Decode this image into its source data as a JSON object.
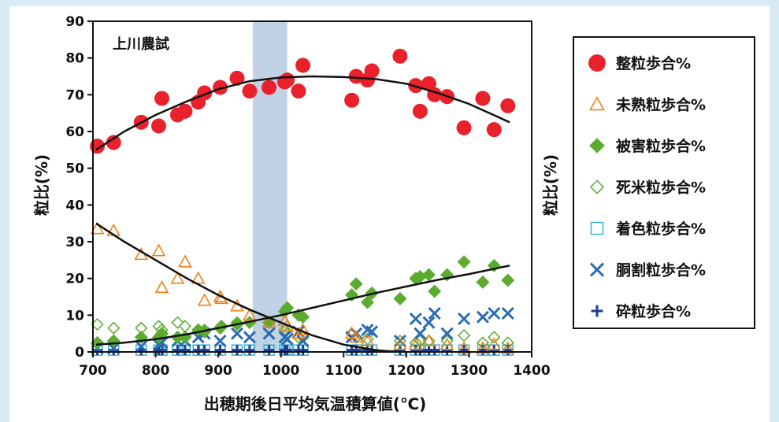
{
  "chart_data": {
    "type": "scatter",
    "annotation": "上川農試",
    "xlabel": "出穂期後日平均気温積算値(℃)",
    "ylabel": "粒比(%)",
    "xlim": [
      700,
      1400
    ],
    "ylim": [
      0,
      90
    ],
    "xticks": [
      "700",
      "800",
      "900",
      "1000",
      "1100",
      "1200",
      "1300",
      "1400"
    ],
    "yticks": [
      "0",
      "10",
      "20",
      "30",
      "40",
      "50",
      "60",
      "70",
      "80",
      "90"
    ],
    "highlight_band": [
      955,
      1010
    ],
    "legend_position": "right",
    "grid": false,
    "series": [
      {
        "name": "整粒歩合%",
        "marker": "filled-circle",
        "color": "#e8212b",
        "points": [
          [
            707,
            56
          ],
          [
            733,
            57
          ],
          [
            777,
            62.5
          ],
          [
            805,
            61.5
          ],
          [
            810,
            69
          ],
          [
            835,
            64.5
          ],
          [
            847,
            65.5
          ],
          [
            868,
            68
          ],
          [
            878,
            70.5
          ],
          [
            903,
            72
          ],
          [
            930,
            74.5
          ],
          [
            950,
            71
          ],
          [
            981,
            72
          ],
          [
            1006,
            73.5
          ],
          [
            1010,
            74
          ],
          [
            1028,
            71
          ],
          [
            1035,
            78
          ],
          [
            1113,
            68.5
          ],
          [
            1120,
            75
          ],
          [
            1138,
            74
          ],
          [
            1145,
            76.5
          ],
          [
            1190,
            80.5
          ],
          [
            1215,
            72.5
          ],
          [
            1222,
            65.5
          ],
          [
            1236,
            73
          ],
          [
            1245,
            70
          ],
          [
            1265,
            69.5
          ],
          [
            1292,
            61
          ],
          [
            1322,
            69
          ],
          [
            1340,
            60.5
          ],
          [
            1362,
            67
          ]
        ]
      },
      {
        "name": "未熟粒歩合%",
        "marker": "open-triangle",
        "color": "#ee8019",
        "points": [
          [
            707,
            33.5
          ],
          [
            733,
            33
          ],
          [
            777,
            26.5
          ],
          [
            805,
            27.5
          ],
          [
            810,
            17.5
          ],
          [
            835,
            20
          ],
          [
            847,
            24.5
          ],
          [
            868,
            20
          ],
          [
            878,
            14
          ],
          [
            903,
            15
          ],
          [
            905,
            14.5
          ],
          [
            930,
            12.5
          ],
          [
            950,
            10
          ],
          [
            981,
            8
          ],
          [
            1006,
            8.5
          ],
          [
            1010,
            7
          ],
          [
            1028,
            5
          ],
          [
            1035,
            6
          ],
          [
            1113,
            5
          ],
          [
            1120,
            4
          ],
          [
            1138,
            3
          ],
          [
            1190,
            2
          ],
          [
            1215,
            2
          ],
          [
            1236,
            3
          ],
          [
            1265,
            2
          ],
          [
            1292,
            1
          ],
          [
            1322,
            1
          ],
          [
            1340,
            2
          ],
          [
            1362,
            1
          ]
        ]
      },
      {
        "name": "被害粒歩合%",
        "marker": "filled-diamond",
        "color": "#5aab2e",
        "points": [
          [
            707,
            2.5
          ],
          [
            733,
            3
          ],
          [
            777,
            4
          ],
          [
            805,
            4
          ],
          [
            810,
            5
          ],
          [
            835,
            4
          ],
          [
            847,
            4
          ],
          [
            868,
            6
          ],
          [
            878,
            5.5
          ],
          [
            903,
            6.5
          ],
          [
            905,
            7
          ],
          [
            930,
            7.5
          ],
          [
            950,
            8
          ],
          [
            981,
            8
          ],
          [
            1006,
            11
          ],
          [
            1010,
            12
          ],
          [
            1028,
            10
          ],
          [
            1035,
            9.5
          ],
          [
            1113,
            15.5
          ],
          [
            1120,
            18.5
          ],
          [
            1138,
            13.5
          ],
          [
            1145,
            16
          ],
          [
            1190,
            14.5
          ],
          [
            1215,
            20
          ],
          [
            1222,
            20.5
          ],
          [
            1236,
            21
          ],
          [
            1245,
            16.5
          ],
          [
            1265,
            21
          ],
          [
            1292,
            24.5
          ],
          [
            1322,
            19
          ],
          [
            1340,
            23.5
          ],
          [
            1362,
            19.5
          ]
        ]
      },
      {
        "name": "死米粒歩合%",
        "marker": "open-diamond",
        "color": "#5aab2e",
        "points": [
          [
            707,
            7.5
          ],
          [
            733,
            6.5
          ],
          [
            777,
            6.5
          ],
          [
            805,
            7
          ],
          [
            810,
            6
          ],
          [
            835,
            8
          ],
          [
            847,
            7
          ],
          [
            868,
            5.5
          ],
          [
            878,
            6
          ],
          [
            903,
            6.5
          ],
          [
            930,
            8
          ],
          [
            950,
            8
          ],
          [
            981,
            8
          ],
          [
            1006,
            6
          ],
          [
            1010,
            5
          ],
          [
            1028,
            4
          ],
          [
            1035,
            4
          ],
          [
            1113,
            5
          ],
          [
            1120,
            4
          ],
          [
            1138,
            3.5
          ],
          [
            1190,
            3
          ],
          [
            1215,
            2.5
          ],
          [
            1222,
            3
          ],
          [
            1236,
            3
          ],
          [
            1265,
            3
          ],
          [
            1292,
            4.5
          ],
          [
            1322,
            2.5
          ],
          [
            1340,
            4
          ],
          [
            1362,
            2.5
          ]
        ]
      },
      {
        "name": "着色粒歩合%",
        "marker": "open-square",
        "color": "#3cb1d6",
        "points": [
          [
            707,
            0.5
          ],
          [
            733,
            0.5
          ],
          [
            777,
            0.5
          ],
          [
            805,
            0.5
          ],
          [
            810,
            0.5
          ],
          [
            835,
            0.5
          ],
          [
            847,
            0.5
          ],
          [
            868,
            0.5
          ],
          [
            878,
            0.5
          ],
          [
            903,
            0.5
          ],
          [
            930,
            0.5
          ],
          [
            950,
            0.5
          ],
          [
            981,
            0.5
          ],
          [
            1006,
            0.5
          ],
          [
            1010,
            0.5
          ],
          [
            1028,
            0.5
          ],
          [
            1035,
            0.5
          ],
          [
            1113,
            0.5
          ],
          [
            1120,
            0.5
          ],
          [
            1138,
            0.5
          ],
          [
            1145,
            0.5
          ],
          [
            1190,
            0.5
          ],
          [
            1215,
            0.5
          ],
          [
            1222,
            0.5
          ],
          [
            1236,
            0.5
          ],
          [
            1245,
            0.5
          ],
          [
            1265,
            0.5
          ],
          [
            1292,
            0.5
          ],
          [
            1322,
            0.5
          ],
          [
            1340,
            0.5
          ],
          [
            1362,
            0.5
          ]
        ]
      },
      {
        "name": "胴割粒歩合%",
        "marker": "x",
        "color": "#2a6bb3",
        "points": [
          [
            707,
            1
          ],
          [
            733,
            1
          ],
          [
            777,
            1.5
          ],
          [
            805,
            2
          ],
          [
            810,
            2.5
          ],
          [
            835,
            3
          ],
          [
            847,
            3
          ],
          [
            868,
            4
          ],
          [
            878,
            5
          ],
          [
            903,
            3
          ],
          [
            930,
            5
          ],
          [
            950,
            4
          ],
          [
            981,
            5
          ],
          [
            1006,
            4
          ],
          [
            1010,
            3.5
          ],
          [
            1028,
            5.5
          ],
          [
            1035,
            3
          ],
          [
            1113,
            4
          ],
          [
            1120,
            5
          ],
          [
            1138,
            6
          ],
          [
            1145,
            5.5
          ],
          [
            1190,
            3
          ],
          [
            1215,
            9
          ],
          [
            1222,
            5
          ],
          [
            1236,
            8
          ],
          [
            1245,
            10.5
          ],
          [
            1265,
            5
          ],
          [
            1292,
            9
          ],
          [
            1322,
            9.5
          ],
          [
            1340,
            10.5
          ],
          [
            1362,
            10.5
          ]
        ]
      },
      {
        "name": "砕粒歩合%",
        "marker": "plus",
        "color": "#1d3f8e",
        "points": [
          [
            707,
            0.5
          ],
          [
            733,
            0.5
          ],
          [
            777,
            0.5
          ],
          [
            805,
            0.5
          ],
          [
            810,
            0.5
          ],
          [
            835,
            0.5
          ],
          [
            847,
            0.5
          ],
          [
            868,
            0.5
          ],
          [
            878,
            0.5
          ],
          [
            903,
            0.5
          ],
          [
            930,
            0.5
          ],
          [
            950,
            0.5
          ],
          [
            981,
            0.5
          ],
          [
            1006,
            0.5
          ],
          [
            1010,
            0.5
          ],
          [
            1028,
            0.5
          ],
          [
            1035,
            0.5
          ],
          [
            1113,
            0.5
          ],
          [
            1120,
            0.5
          ],
          [
            1138,
            0.5
          ],
          [
            1145,
            0.5
          ],
          [
            1190,
            0.5
          ],
          [
            1215,
            0.5
          ],
          [
            1222,
            0.5
          ],
          [
            1236,
            0.5
          ],
          [
            1245,
            0.5
          ],
          [
            1265,
            0.5
          ],
          [
            1292,
            0.5
          ],
          [
            1322,
            0.5
          ],
          [
            1340,
            0.5
          ],
          [
            1362,
            0.5
          ]
        ]
      }
    ],
    "trend_lines": [
      {
        "series": "整粒歩合%",
        "points": [
          [
            705,
            55
          ],
          [
            750,
            60
          ],
          [
            800,
            64.5
          ],
          [
            850,
            68.2
          ],
          [
            900,
            71.5
          ],
          [
            950,
            73.7
          ],
          [
            1000,
            74.7
          ],
          [
            1050,
            75
          ],
          [
            1100,
            74.8
          ],
          [
            1150,
            74.3
          ],
          [
            1200,
            73
          ],
          [
            1250,
            70.5
          ],
          [
            1300,
            67.5
          ],
          [
            1365,
            62.5
          ]
        ]
      },
      {
        "series": "未熟粒歩合%",
        "points": [
          [
            705,
            35
          ],
          [
            750,
            30
          ],
          [
            800,
            25
          ],
          [
            850,
            20
          ],
          [
            900,
            15.5
          ],
          [
            950,
            11.5
          ],
          [
            1000,
            8
          ],
          [
            1050,
            4.5
          ],
          [
            1100,
            2
          ],
          [
            1150,
            0.5
          ],
          [
            1190,
            0
          ]
        ]
      },
      {
        "series": "被害粒歩合%",
        "points": [
          [
            705,
            2
          ],
          [
            750,
            2.5
          ],
          [
            800,
            3.5
          ],
          [
            850,
            4.8
          ],
          [
            900,
            6.5
          ],
          [
            950,
            8.2
          ],
          [
            1000,
            10
          ],
          [
            1050,
            12
          ],
          [
            1100,
            14
          ],
          [
            1150,
            16
          ],
          [
            1200,
            17.8
          ],
          [
            1250,
            19.6
          ],
          [
            1300,
            21.2
          ],
          [
            1365,
            23.5
          ]
        ]
      }
    ]
  }
}
